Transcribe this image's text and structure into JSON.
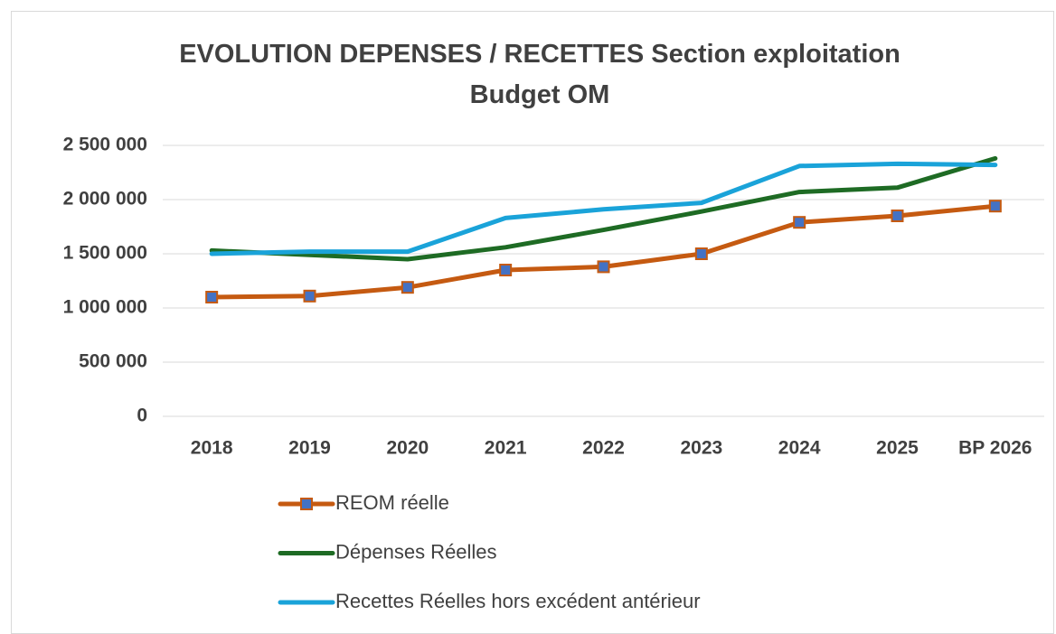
{
  "chart_data": {
    "type": "line",
    "title": "EVOLUTION DEPENSES / RECETTES Section exploitation Budget OM",
    "categories": [
      "2018",
      "2019",
      "2020",
      "2021",
      "2022",
      "2023",
      "2024",
      "2025",
      "BP 2026"
    ],
    "series": [
      {
        "name": "REOM réelle",
        "color": "#c55a11",
        "marker_color": "#4472c4",
        "marker": "square",
        "values": [
          1100000,
          1110000,
          1190000,
          1350000,
          1380000,
          1500000,
          1790000,
          1850000,
          1940000
        ]
      },
      {
        "name": "Dépenses Réelles",
        "color": "#1e6b24",
        "values": [
          1530000,
          1490000,
          1450000,
          1560000,
          1720000,
          1890000,
          2070000,
          2110000,
          2380000
        ]
      },
      {
        "name": "Recettes Réelles hors excédent antérieur",
        "color": "#1aa3d9",
        "values": [
          1500000,
          1520000,
          1520000,
          1830000,
          1910000,
          1970000,
          2310000,
          2330000,
          2320000
        ]
      }
    ],
    "ylim": [
      0,
      2500000
    ],
    "yticks": [
      0,
      {
        "value": 500000,
        "label": "500 000"
      },
      {
        "value": 1000000,
        "label": "1 000 000"
      },
      {
        "value": 1500000,
        "label": "1 500 000"
      },
      {
        "value": 2000000,
        "label": "2 000 000"
      },
      {
        "value": 2500000,
        "label": "2 500 000"
      }
    ],
    "grid": true,
    "legend": "bottom"
  }
}
